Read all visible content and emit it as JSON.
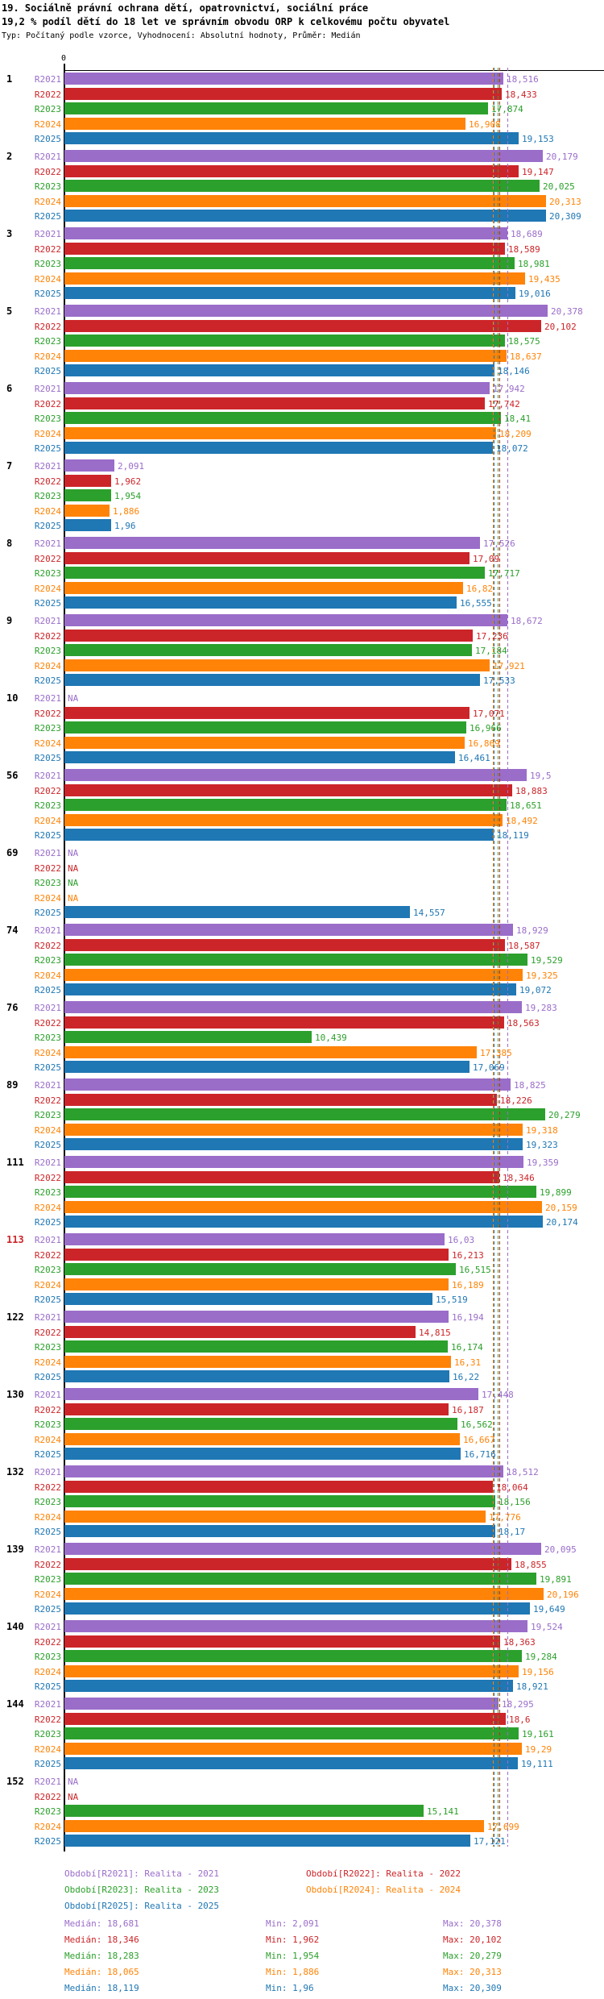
{
  "header": {
    "title_line1": "19. Sociálně právní ochrana dětí, opatrovnictví, sociální práce",
    "title_line2": "19,2 % podíl dětí do 18 let ve správním obvodu ORP k celkovému počtu obyvatel",
    "subtitle": "Typ: Počítaný podle vzorce, Vyhodnocení: Absolutní hodnoty, Průměr: Medián"
  },
  "chart_data": {
    "type": "bar",
    "orientation": "horizontal",
    "axis_zero_label": "0",
    "value_axis_note": "values in thousands, Czech decimal comma; axis starts at 0",
    "series_labels": [
      "R2021",
      "R2022",
      "R2023",
      "R2024",
      "R2025"
    ],
    "series_colors": {
      "R2021": "#9A6DC9",
      "R2022": "#CC2529",
      "R2023": "#2CA02C",
      "R2024": "#FF8307",
      "R2025": "#1F77B4"
    },
    "groups": [
      {
        "id": "1",
        "values": [
          "18,516",
          "18,433",
          "17,874",
          "16,908",
          "19,153"
        ]
      },
      {
        "id": "2",
        "values": [
          "20,179",
          "19,147",
          "20,025",
          "20,313",
          "20,309"
        ]
      },
      {
        "id": "3",
        "values": [
          "18,689",
          "18,589",
          "18,981",
          "19,435",
          "19,016"
        ]
      },
      {
        "id": "5",
        "values": [
          "20,378",
          "20,102",
          "18,575",
          "18,637",
          "18,146"
        ]
      },
      {
        "id": "6",
        "values": [
          "17,942",
          "17,742",
          "18,41",
          "18,209",
          "18,072"
        ]
      },
      {
        "id": "7",
        "values": [
          "2,091",
          "1,962",
          "1,954",
          "1,886",
          "1,96"
        ]
      },
      {
        "id": "8",
        "values": [
          "17,526",
          "17,09",
          "17,717",
          "16,82",
          "16,555"
        ]
      },
      {
        "id": "9",
        "values": [
          "18,672",
          "17,236",
          "17,184",
          "17,921",
          "17,533"
        ]
      },
      {
        "id": "10",
        "values": [
          "NA",
          "17,071",
          "16,966",
          "16,869",
          "16,461"
        ]
      },
      {
        "id": "56",
        "values": [
          "19,5",
          "18,883",
          "18,651",
          "18,492",
          "18,119"
        ]
      },
      {
        "id": "69",
        "values": [
          "NA",
          "NA",
          "NA",
          "NA",
          "14,557"
        ]
      },
      {
        "id": "74",
        "values": [
          "18,929",
          "18,587",
          "19,529",
          "19,325",
          "19,072"
        ]
      },
      {
        "id": "76",
        "values": [
          "19,283",
          "18,563",
          "10,439",
          "17,385",
          "17,069"
        ]
      },
      {
        "id": "89",
        "values": [
          "18,825",
          "18,226",
          "20,279",
          "19,318",
          "19,323"
        ]
      },
      {
        "id": "111",
        "values": [
          "19,359",
          "18,346",
          "19,899",
          "20,159",
          "20,174"
        ]
      },
      {
        "id": "113",
        "values": [
          "16,03",
          "16,213",
          "16,515",
          "16,189",
          "15,519"
        ],
        "id_color": "#CC2529"
      },
      {
        "id": "122",
        "values": [
          "16,194",
          "14,815",
          "16,174",
          "16,31",
          "16,22"
        ]
      },
      {
        "id": "130",
        "values": [
          "17,448",
          "16,187",
          "16,562",
          "16,667",
          "16,716"
        ]
      },
      {
        "id": "132",
        "values": [
          "18,512",
          "18,064",
          "18,156",
          "17,776",
          "18,17"
        ]
      },
      {
        "id": "139",
        "values": [
          "20,095",
          "18,855",
          "19,891",
          "20,196",
          "19,649"
        ]
      },
      {
        "id": "140",
        "values": [
          "19,524",
          "18,363",
          "19,284",
          "19,156",
          "18,921"
        ]
      },
      {
        "id": "144",
        "values": [
          "18,295",
          "18,6",
          "19,161",
          "19,29",
          "19,111"
        ]
      },
      {
        "id": "152",
        "values": [
          "NA",
          "NA",
          "15,141",
          "17,699",
          "17,121"
        ]
      }
    ],
    "medians": {
      "R2021": "18,681",
      "R2022": "18,346",
      "R2023": "18,283",
      "R2024": "18,065",
      "R2025": "18,119"
    }
  },
  "legend": {
    "items": [
      {
        "series": "R2021",
        "label": "Období[R2021]: Realita - 2021"
      },
      {
        "series": "R2022",
        "label": "Období[R2022]: Realita - 2022"
      },
      {
        "series": "R2023",
        "label": "Období[R2023]: Realita - 2023"
      },
      {
        "series": "R2024",
        "label": "Období[R2024]: Realita - 2024"
      },
      {
        "series": "R2025",
        "label": "Období[R2025]: Realita - 2025"
      }
    ]
  },
  "stats": {
    "rows": [
      {
        "series": "R2021",
        "median": "Medián: 18,681",
        "min": "Min: 2,091",
        "max": "Max: 20,378"
      },
      {
        "series": "R2022",
        "median": "Medián: 18,346",
        "min": "Min: 1,962",
        "max": "Max: 20,102"
      },
      {
        "series": "R2023",
        "median": "Medián: 18,283",
        "min": "Min: 1,954",
        "max": "Max: 20,279"
      },
      {
        "series": "R2024",
        "median": "Medián: 18,065",
        "min": "Min: 1,886",
        "max": "Max: 20,313"
      },
      {
        "series": "R2025",
        "median": "Medián: 18,119",
        "min": "Min: 1,96",
        "max": "Max: 20,309"
      }
    ]
  }
}
